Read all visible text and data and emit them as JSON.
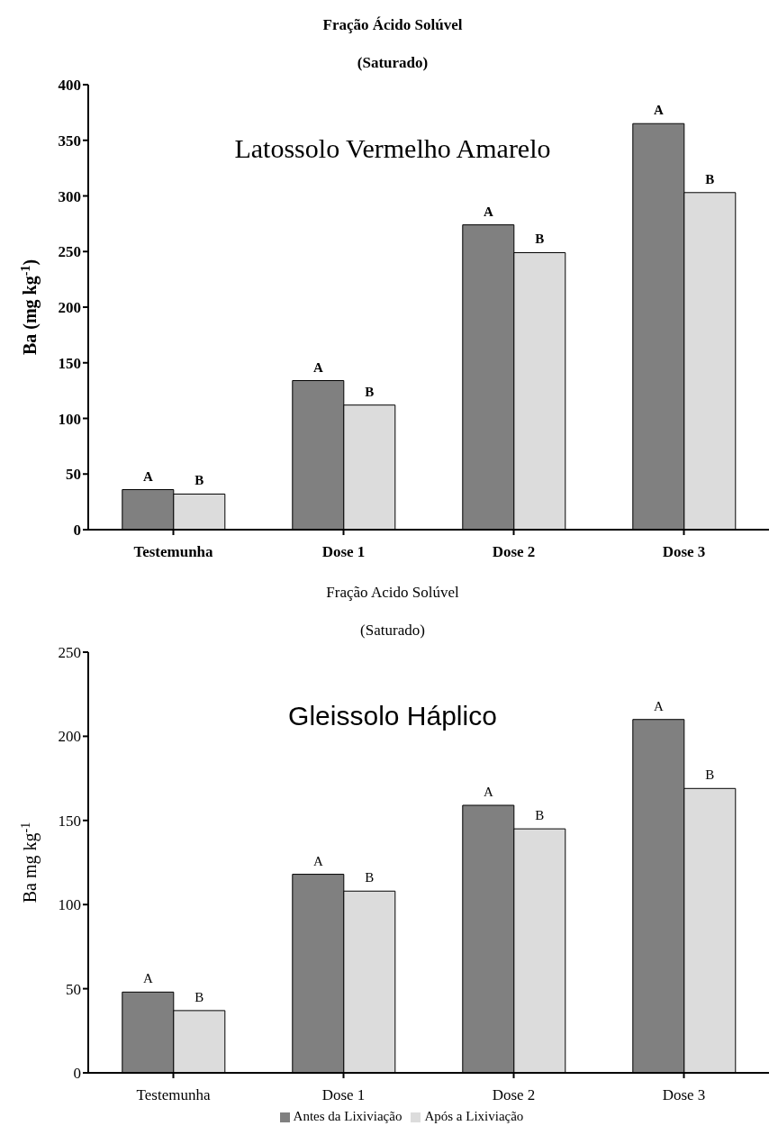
{
  "chart_data": [
    {
      "type": "bar",
      "title": "Fração Ácido Solúvel",
      "subtitle": "(Saturado)",
      "ylabel": "Ba (mg kg$^{-1}$)",
      "annotations": [
        "Latossolo Vermelho Amarelo"
      ],
      "categories": [
        "Testemunha",
        "Dose 1",
        "Dose 2",
        "Dose 3"
      ],
      "series": [
        {
          "color": "#808080",
          "values": [
            36,
            134,
            274,
            365
          ],
          "value_labels": [
            "A",
            "A",
            "A",
            "A"
          ]
        },
        {
          "color": "#dcdcdc",
          "values": [
            32,
            112,
            249,
            303
          ],
          "value_labels": [
            "B",
            "B",
            "B",
            "B"
          ]
        }
      ],
      "ylim": [
        0,
        400
      ],
      "yticks": [
        0,
        50,
        100,
        150,
        200,
        250,
        300,
        350,
        400
      ],
      "grid": false,
      "legend": false
    },
    {
      "type": "bar",
      "title": "Fração Acido Solúvel",
      "subtitle": "(Saturado)",
      "ylabel": "Ba mg kg$^{-1}$",
      "annotations": [
        "Gleissolo Háplico"
      ],
      "categories": [
        "Testemunha",
        "Dose 1",
        "Dose 2",
        "Dose 3"
      ],
      "series": [
        {
          "name": "Antes da Lixiviação",
          "color": "#808080",
          "values": [
            48,
            118,
            159,
            210
          ],
          "value_labels": [
            "A",
            "A",
            "A",
            "A"
          ]
        },
        {
          "name": "Após a Lixiviação",
          "color": "#dcdcdc",
          "values": [
            37,
            108,
            145,
            169
          ],
          "value_labels": [
            "B",
            "B",
            "B",
            "B"
          ]
        }
      ],
      "ylim": [
        0,
        250
      ],
      "yticks": [
        0,
        50,
        100,
        150,
        200,
        250
      ],
      "grid": false,
      "legend": "bottom"
    }
  ]
}
